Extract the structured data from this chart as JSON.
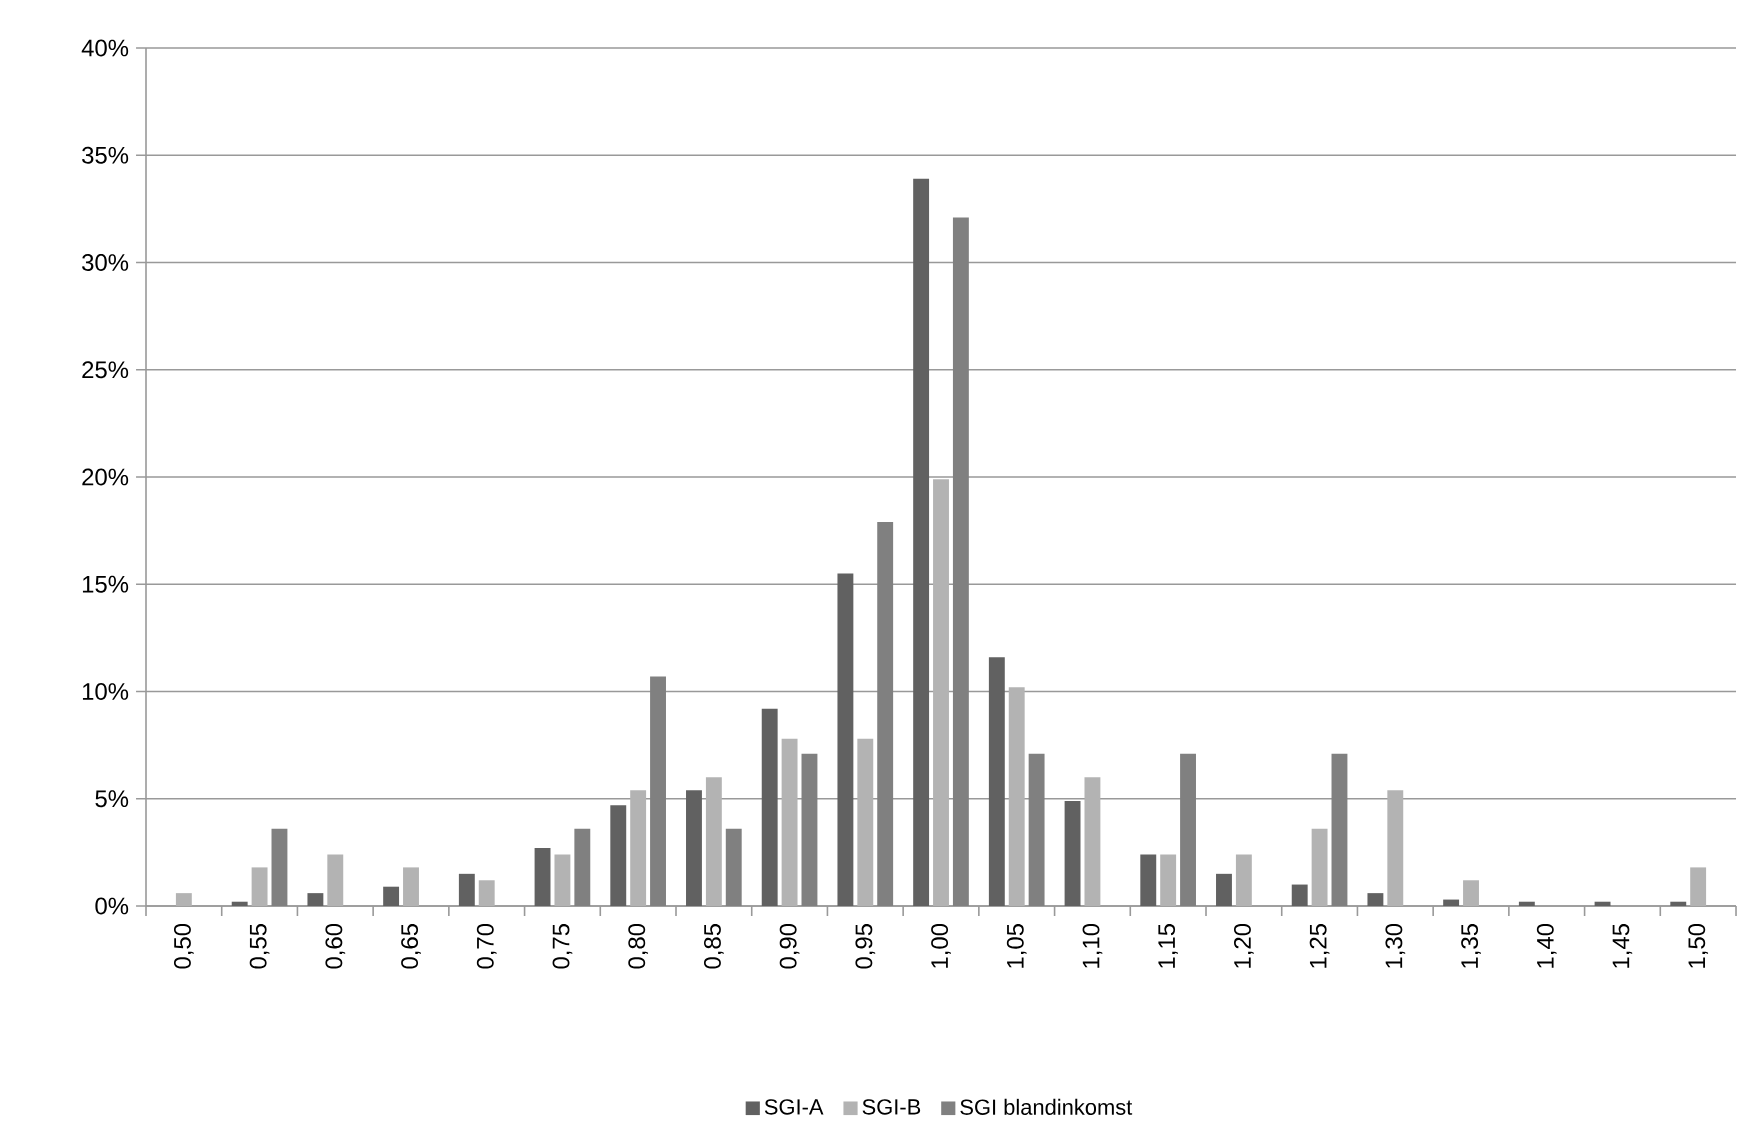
{
  "chart_data": {
    "type": "bar",
    "categories": [
      "0,50",
      "0,55",
      "0,60",
      "0,65",
      "0,70",
      "0,75",
      "0,80",
      "0,85",
      "0,90",
      "0,95",
      "1,00",
      "1,05",
      "1,10",
      "1,15",
      "1,20",
      "1,25",
      "1,30",
      "1,35",
      "1,40",
      "1,45",
      "1,50"
    ],
    "series": [
      {
        "name": "SGI-A",
        "color": "#616161",
        "values": [
          null,
          0.2,
          0.6,
          0.9,
          1.5,
          2.7,
          4.7,
          5.4,
          9.2,
          15.5,
          33.9,
          11.6,
          4.9,
          2.4,
          1.5,
          1.0,
          0.6,
          0.3,
          0.2,
          0.2,
          0.2
        ]
      },
      {
        "name": "SGI-B",
        "color": "#b3b3b3",
        "values": [
          0.6,
          1.8,
          2.4,
          1.8,
          1.2,
          2.4,
          5.4,
          6.0,
          7.8,
          7.8,
          19.9,
          10.2,
          6.0,
          2.4,
          2.4,
          3.6,
          5.4,
          1.2,
          0,
          0,
          1.8
        ]
      },
      {
        "name": "SGI blandinkomst",
        "color": "#808080",
        "values": [
          0,
          3.6,
          0,
          0,
          0,
          3.6,
          10.7,
          3.6,
          7.1,
          17.9,
          32.1,
          7.1,
          0,
          7.1,
          0,
          7.1,
          0,
          0,
          0,
          0,
          0
        ]
      }
    ],
    "ylim": [
      0,
      40
    ],
    "yticks": [
      {
        "value": 0,
        "label": "0%"
      },
      {
        "value": 5,
        "label": "5%"
      },
      {
        "value": 10,
        "label": "10%"
      },
      {
        "value": 15,
        "label": "15%"
      },
      {
        "value": 20,
        "label": "20%"
      },
      {
        "value": 25,
        "label": "25%"
      },
      {
        "value": 30,
        "label": "30%"
      },
      {
        "value": 35,
        "label": "35%"
      },
      {
        "value": 40,
        "label": "40%"
      }
    ],
    "grid": "y",
    "legend": "bottom"
  }
}
